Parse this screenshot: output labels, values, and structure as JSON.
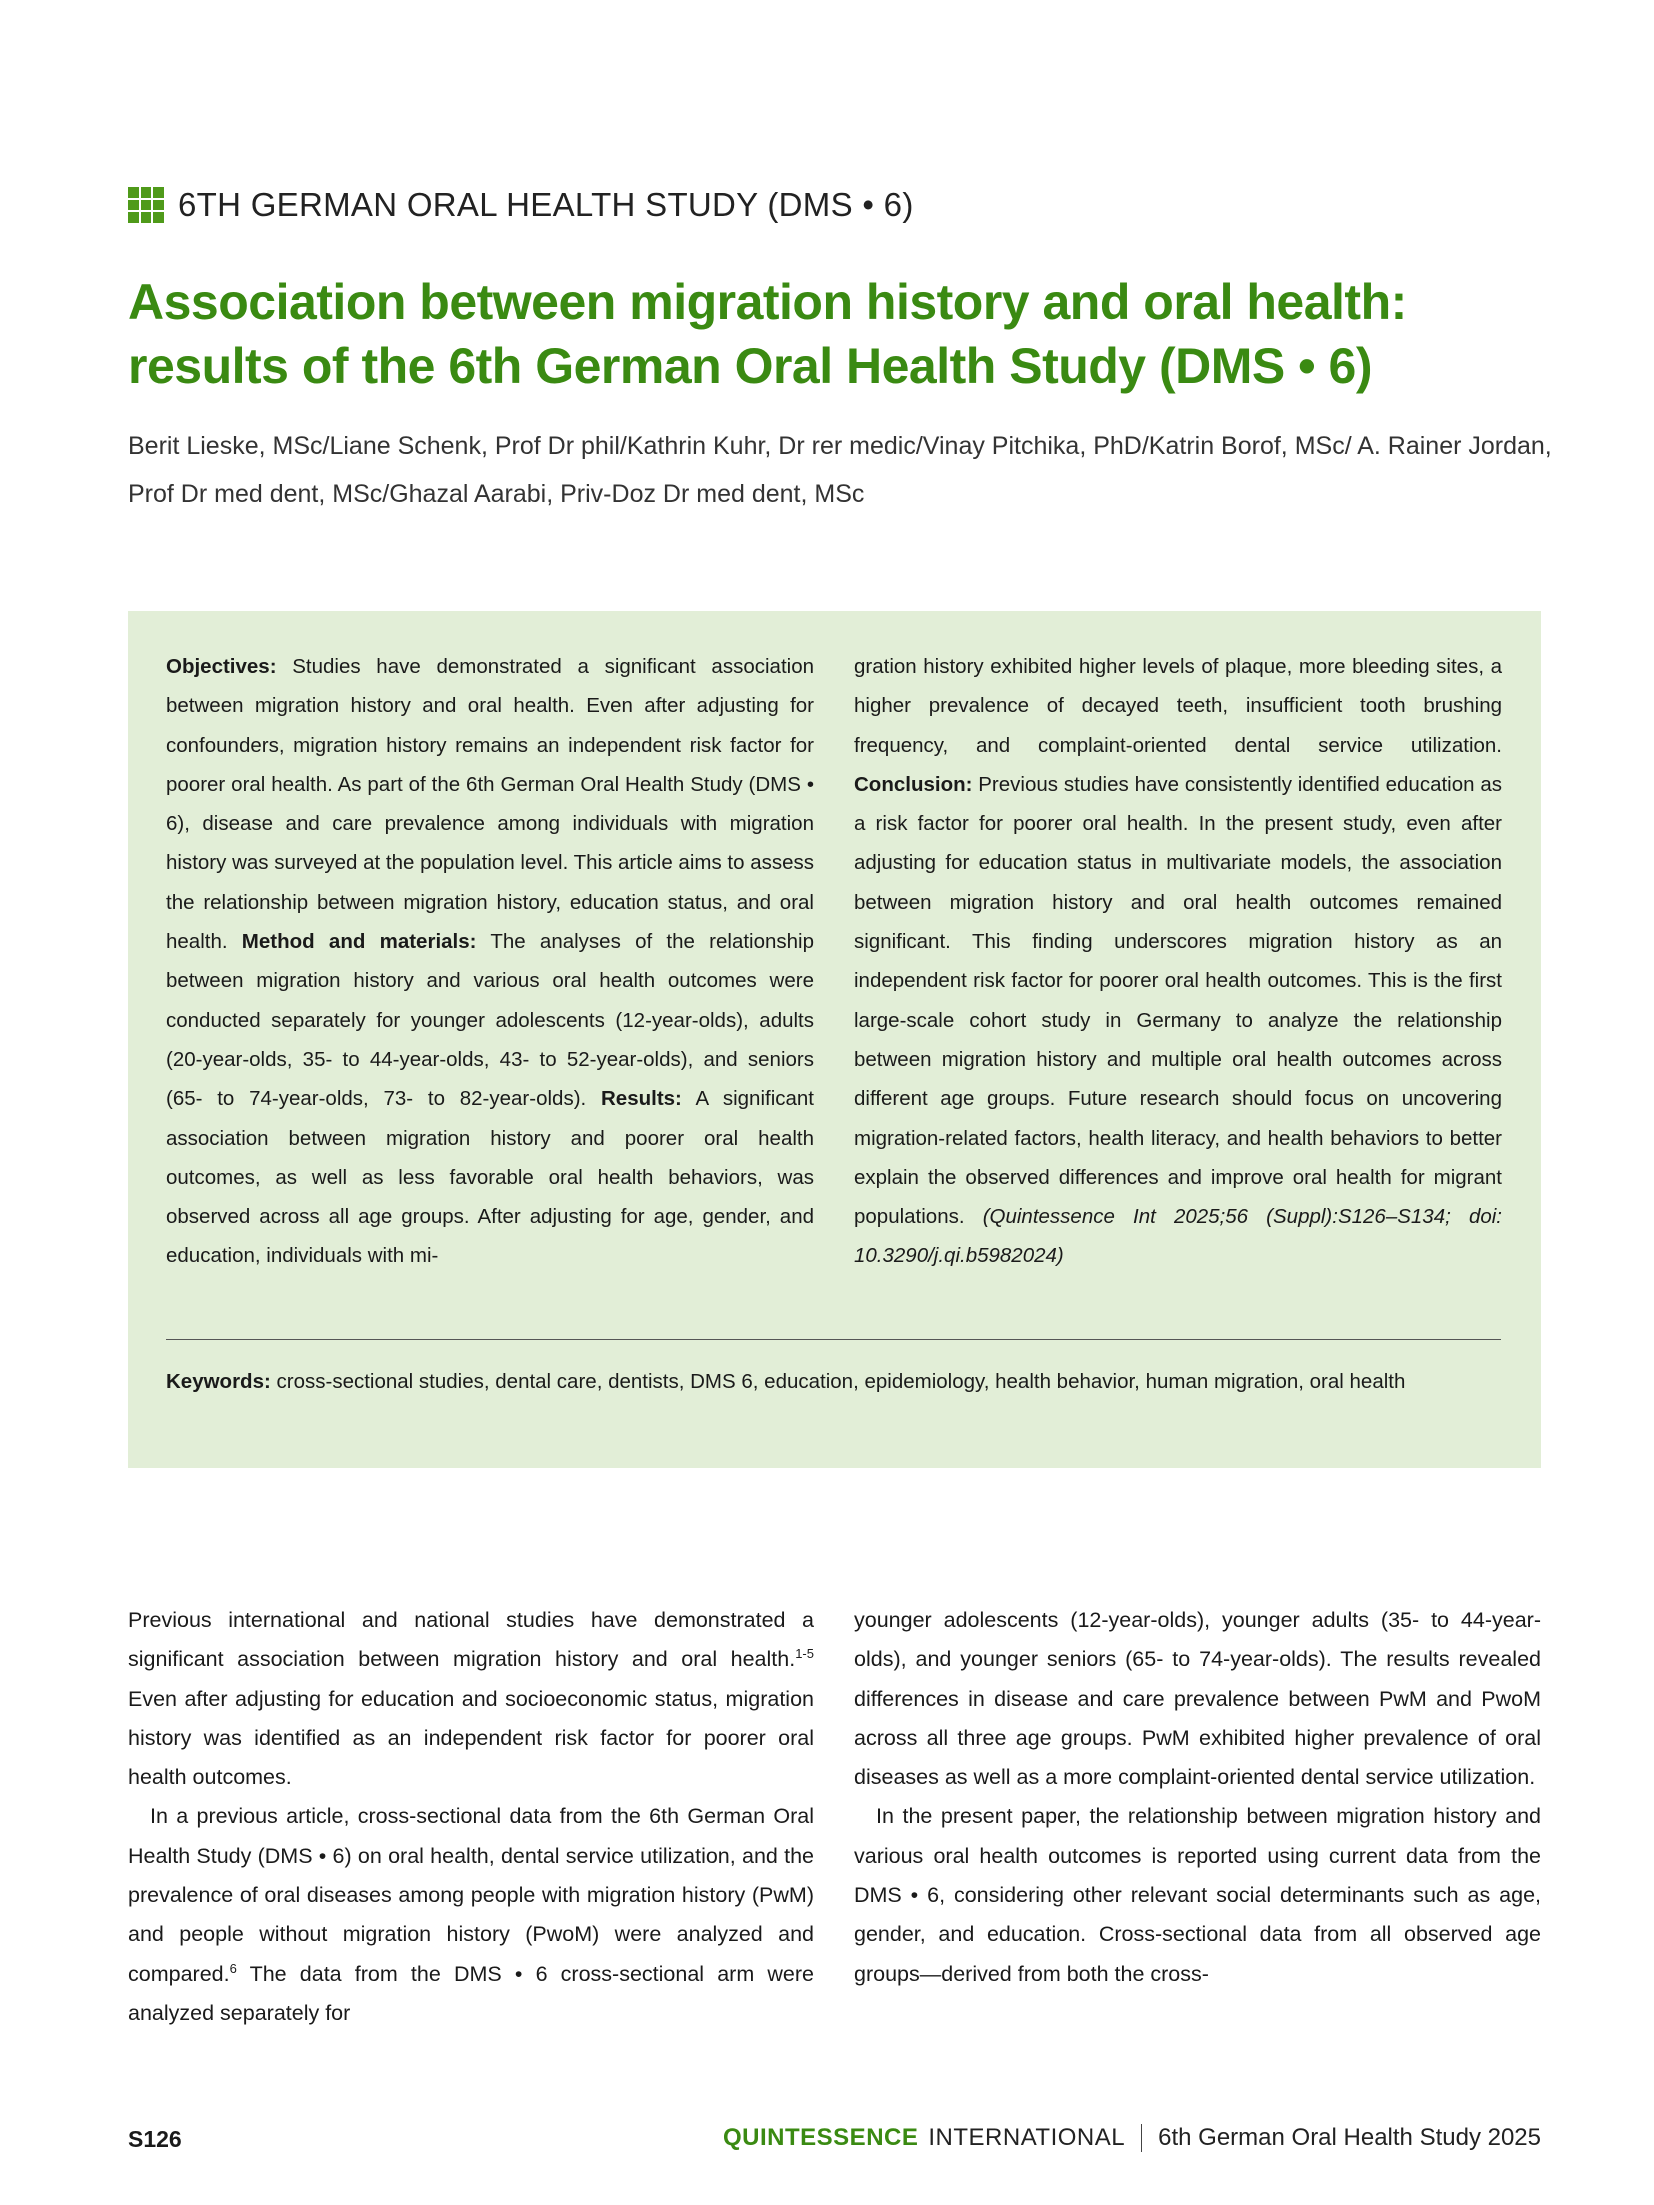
{
  "header": {
    "series_icon": "green-grid-icon",
    "series_title": "6TH GERMAN ORAL HEALTH STUDY (DMS • 6)",
    "title": "Association between migration history and oral health: results of the 6th German Oral Health Study (DMS • 6)",
    "authors": "Berit Lieske, MSc/Liane Schenk, Prof Dr phil/Kathrin Kuhr, Dr rer medic/Vinay Pitchika, PhD/Katrin Borof, MSc/ A. Rainer Jordan, Prof Dr med dent, MSc/Ghazal Aarabi, Priv-Doz Dr med dent, MSc"
  },
  "abstract": {
    "objectives_label": "Objectives:",
    "objectives_text": " Studies have demonstrated a significant association between migration history and oral health. Even after adjusting for confounders, migration history remains an independent risk factor for poorer oral health. As part of the 6th German Oral Health Study (DMS • 6), disease and care prevalence among individuals with migration history was surveyed at the population level. This article aims to assess the relationship between migration history, education status, and oral health. ",
    "methods_label": "Method and materials:",
    "methods_text": " The analyses of the relationship between migration history and various oral health outcomes were conducted separately for younger adolescents (12-year-olds), adults (20-year-olds, 35- to 44-year-olds, 43- to 52-year-olds), and seniors (65- to 74-year-olds, 73- to 82-year-olds). ",
    "results_label": "Results:",
    "results_text_left": " A significant association between migration history and poorer oral health outcomes, as well as less favorable oral health behaviors, was observed across all age groups. After adjusting for age, gender, and education, individuals with mi-",
    "results_text_right": "gration history exhibited higher levels of plaque, more bleeding sites, a higher prevalence of decayed teeth, insufficient tooth brushing frequency, and complaint-oriented dental service utilization. ",
    "conclusion_label": "Conclusion:",
    "conclusion_text": " Previous studies have consistently identified education as a risk factor for poorer oral health. In the present study, even after adjusting for education status in multivariate models, the association between migration history and oral health outcomes remained significant. This finding underscores migration history as an independent risk factor for poorer oral health outcomes. This is the first large-scale cohort study in Germany to analyze the relationship between migration history and multiple oral health outcomes across different age groups. Future research should focus on uncovering migration-related factors, health literacy, and health behaviors to better explain the observed differences and improve oral health for migrant populations. ",
    "citation": "(Quintessence Int 2025;56 (Suppl):S126–S134; doi: 10.3290/j.qi.b5982024)",
    "keywords_label": "Keywords:",
    "keywords_text": " cross-sectional studies, dental care, dentists, DMS 6, education, epidemiology, health behavior, human migration, oral health"
  },
  "body": {
    "p1_a": "Previous international and national studies have demonstrated a significant association between migration history and oral health.",
    "p1_sup": "1-5",
    "p1_b": " Even after adjusting for education and socioeconomic status, migration history was identified as an independent risk factor for poorer oral health outcomes.",
    "p2_a": "In a previous article, cross-sectional data from the 6th German Oral Health Study (DMS • 6) on oral health, dental service utilization, and the prevalence of oral diseases among people with migration history (PwM) and people without migration history (PwoM) were analyzed and compared.",
    "p2_sup": "6",
    "p2_b": " The data from the DMS • 6 cross-sectional arm were analyzed separately for",
    "p2_cont": "younger adolescents (12-year-olds), younger adults (35- to 44-year-olds), and younger seniors (65- to 74-year-olds). The results revealed differences in disease and care prevalence between PwM and PwoM across all three age groups. PwM exhibited higher prevalence of oral diseases as well as a more complaint-oriented dental service utilization.",
    "p3": "In the present paper, the relationship between migration history and various oral health outcomes is reported using current data from the DMS • 6, considering other relevant social determinants such as age, gender, and education. Cross-sectional data from all observed age groups—derived from both the cross-"
  },
  "footer": {
    "page_number": "S126",
    "journal_brand": "QUINTESSENCE",
    "journal_rest": "INTERNATIONAL",
    "issue": "6th German Oral Health Study 2025"
  },
  "colors": {
    "accent_green": "#3a8a12",
    "abstract_bg": "#e2eed7"
  }
}
